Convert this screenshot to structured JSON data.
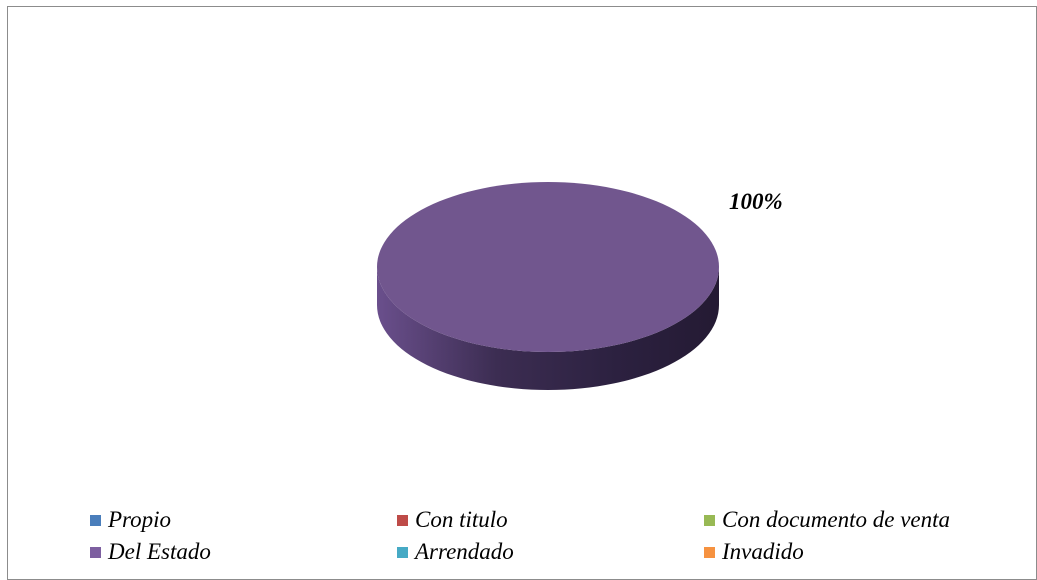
{
  "chart_data": {
    "type": "pie",
    "title": "",
    "slices": [
      {
        "label": "Propio",
        "value": 0,
        "color": "#4a7ebb"
      },
      {
        "label": "Con titulo",
        "value": 0,
        "color": "#be4b48"
      },
      {
        "label": "Con documento de venta",
        "value": 0,
        "color": "#98b954"
      },
      {
        "label": "Del Estado",
        "value": 100,
        "color": "#7d5fa0"
      },
      {
        "label": "Arrendado",
        "value": 0,
        "color": "#46aac5"
      },
      {
        "label": "Invadido",
        "value": 0,
        "color": "#f69240"
      }
    ],
    "data_labels": [
      {
        "slice": "Del Estado",
        "text": "100%"
      }
    ],
    "legend_position": "bottom",
    "style": "3d"
  }
}
